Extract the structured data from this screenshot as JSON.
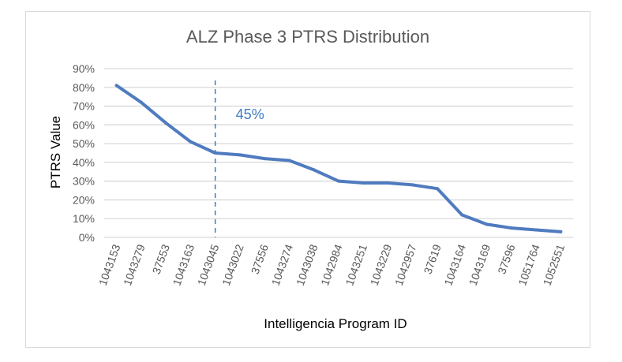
{
  "chart_data": {
    "type": "line",
    "title": "ALZ Phase 3 PTRS Distribution",
    "xlabel": "Intelligencia Program ID",
    "ylabel": "PTRS Value",
    "ylim": [
      0,
      90
    ],
    "yticks": [
      "0%",
      "10%",
      "20%",
      "30%",
      "40%",
      "50%",
      "60%",
      "70%",
      "80%",
      "90%"
    ],
    "categories": [
      "1043153",
      "1043279",
      "37553",
      "1043163",
      "1043045",
      "1043022",
      "37556",
      "1043274",
      "1043038",
      "1042984",
      "1043251",
      "1043229",
      "1042957",
      "37619",
      "1043164",
      "1043169",
      "37596",
      "1051764",
      "1052551"
    ],
    "series": [
      {
        "name": "PTRS",
        "values": [
          81,
          72,
          61,
          51,
          45,
          44,
          42,
          41,
          36,
          30,
          29,
          29,
          28,
          26,
          12,
          7,
          5,
          4,
          3
        ]
      }
    ],
    "annotation": {
      "text": "45%",
      "category_index": 4,
      "style": "dashed vertical line"
    },
    "grid": true,
    "colors": {
      "line": "#4f7bbf",
      "annotation": "#3e7cc4",
      "grid": "#d9d9d9"
    }
  }
}
